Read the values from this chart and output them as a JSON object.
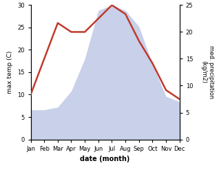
{
  "months": [
    "Jan",
    "Feb",
    "Mar",
    "Apr",
    "May",
    "Jun",
    "Jul",
    "Aug",
    "Sep",
    "Oct",
    "Nov",
    "Dec"
  ],
  "temperature": [
    10,
    18,
    26,
    24,
    24,
    27,
    30,
    28,
    22,
    17,
    11,
    9
  ],
  "precipitation": [
    5.5,
    5.5,
    6,
    9,
    15,
    24,
    25,
    24,
    21,
    14,
    8,
    7
  ],
  "temp_color": "#c0392b",
  "precip_color_fill": "#c8d0ea",
  "ylabel_left": "max temp (C)",
  "ylabel_right": "med. precipitation\n(kg/m2)",
  "xlabel": "date (month)",
  "ylim_left": [
    0,
    30
  ],
  "ylim_right": [
    0,
    25
  ],
  "yticks_left": [
    0,
    5,
    10,
    15,
    20,
    25,
    30
  ],
  "yticks_right": [
    0,
    5,
    10,
    15,
    20,
    25
  ],
  "background_color": "#ffffff",
  "temp_linewidth": 1.8
}
